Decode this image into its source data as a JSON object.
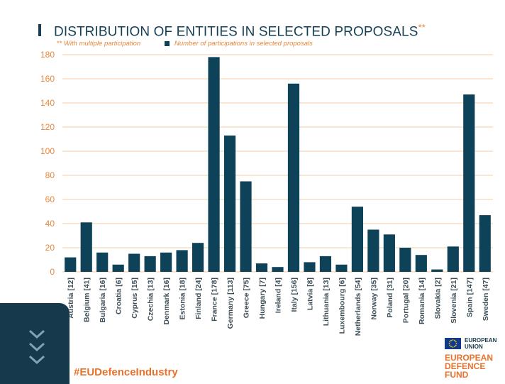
{
  "title": "DISTRIBUTION OF ENTITIES IN SELECTED PROPOSALS",
  "title_mark": "**",
  "legend": {
    "multiple_mark": "**",
    "multiple_label": "With multiple participation",
    "series_label": "Number of participations in selected proposals"
  },
  "chart_data": {
    "type": "bar",
    "categories": [
      "Austria [12]",
      "Belgium [41]",
      "Bulgaria [16]",
      "Croatia [6]",
      "Cyprus [15]",
      "Czechia [13]",
      "Denmark [16]",
      "Estonia [18]",
      "Finland [24]",
      "France [178]",
      "Germany [113]",
      "Greece [75]",
      "Hungary [7]",
      "Ireland [4]",
      "Italy [156]",
      "Latvia [8]",
      "Lithuania [13]",
      "Luxembourg [6]",
      "Netherlands [54]",
      "Norway [35]",
      "Poland [31]",
      "Portugal [20]",
      "Romania [14]",
      "Slovakia [2]",
      "Slovenia [21]",
      "Spain [147]",
      "Sweden [47]"
    ],
    "values": [
      12,
      41,
      16,
      6,
      15,
      13,
      16,
      18,
      24,
      178,
      113,
      75,
      7,
      4,
      156,
      8,
      13,
      6,
      54,
      35,
      31,
      20,
      14,
      2,
      21,
      147,
      47
    ],
    "ylim": [
      0,
      180
    ],
    "yticks": [
      "0",
      "20",
      "40",
      "60",
      "80",
      "100",
      "120",
      "140",
      "160",
      "180"
    ],
    "grid": true,
    "legend_position": "top-left",
    "bar_color": "#0e4259",
    "tick_color": "#e8863b"
  },
  "footer": {
    "hashtag": "#EUDefenceIndustry",
    "eu_line1": "EUROPEAN",
    "eu_line2": "UNION",
    "edf_line1": "EUROPEAN",
    "edf_line2": "DEFENCE",
    "edf_line3": "FUND"
  },
  "colors": {
    "accent": "#e8722b",
    "navy": "#163a4c"
  }
}
